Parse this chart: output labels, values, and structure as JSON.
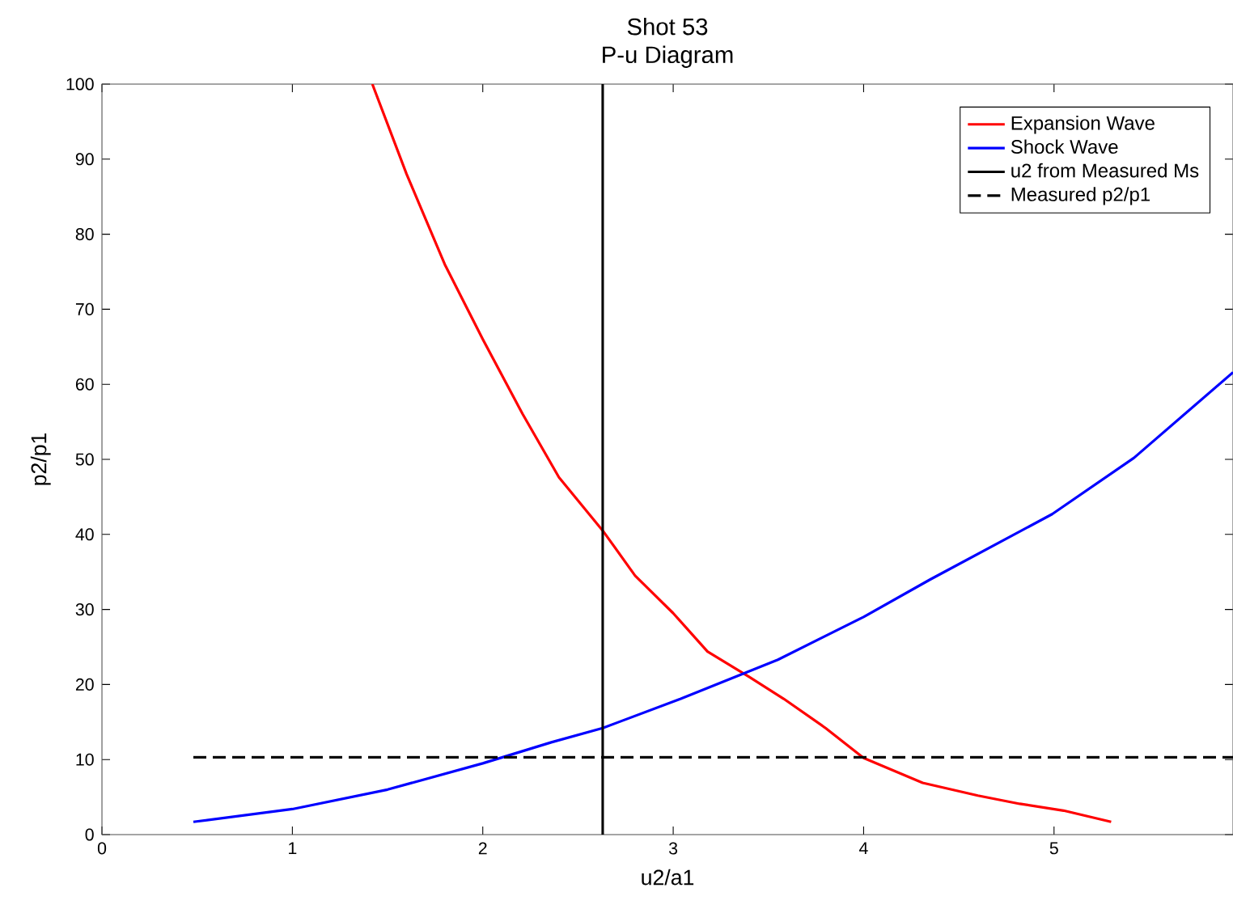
{
  "chart_data": {
    "type": "line",
    "title": "Shot 53",
    "subtitle": "P-u Diagram",
    "xlabel": "u2/a1",
    "ylabel": "p2/p1",
    "xlim": [
      0,
      5.94
    ],
    "ylim": [
      0,
      100
    ],
    "xticks": [
      0,
      1,
      2,
      3,
      4,
      5
    ],
    "yticks": [
      0,
      10,
      20,
      30,
      40,
      50,
      60,
      70,
      80,
      90,
      100
    ],
    "legend": "top right",
    "grid": false,
    "marker": "none",
    "series": [
      {
        "name": "Expansion Wave",
        "color": "#ff0000",
        "line_style": "solid",
        "x": [
          1.42,
          1.6,
          1.8,
          2.0,
          2.21,
          2.4,
          2.63,
          2.8,
          3.0,
          3.18,
          3.4,
          3.58,
          3.8,
          4.0,
          4.31,
          4.6,
          4.82,
          5.05,
          5.3
        ],
        "values": [
          100,
          88,
          76,
          66,
          56,
          47.6,
          40.5,
          34.5,
          29.5,
          24.4,
          21,
          18.1,
          14.2,
          10.2,
          6.9,
          5.2,
          4.1,
          3.2,
          1.7
        ]
      },
      {
        "name": "Shock Wave",
        "color": "#0000ff",
        "line_style": "solid",
        "x": [
          0.48,
          1.0,
          1.5,
          2.0,
          2.36,
          2.63,
          3.04,
          3.55,
          4.0,
          4.35,
          4.99,
          5.42,
          5.94
        ],
        "values": [
          1.7,
          3.4,
          6.0,
          9.5,
          12.3,
          14.2,
          18.1,
          23.3,
          29.0,
          34.0,
          42.7,
          50.2,
          61.6
        ]
      },
      {
        "name": "u2 from Measured Ms",
        "color": "#000000",
        "line_style": "solid",
        "x": [
          2.63,
          2.63
        ],
        "values": [
          0,
          100
        ]
      },
      {
        "name": "Measured p2/p1",
        "color": "#000000",
        "line_style": "dashed",
        "x": [
          0.48,
          5.94
        ],
        "values": [
          10.3,
          10.3
        ]
      }
    ]
  }
}
